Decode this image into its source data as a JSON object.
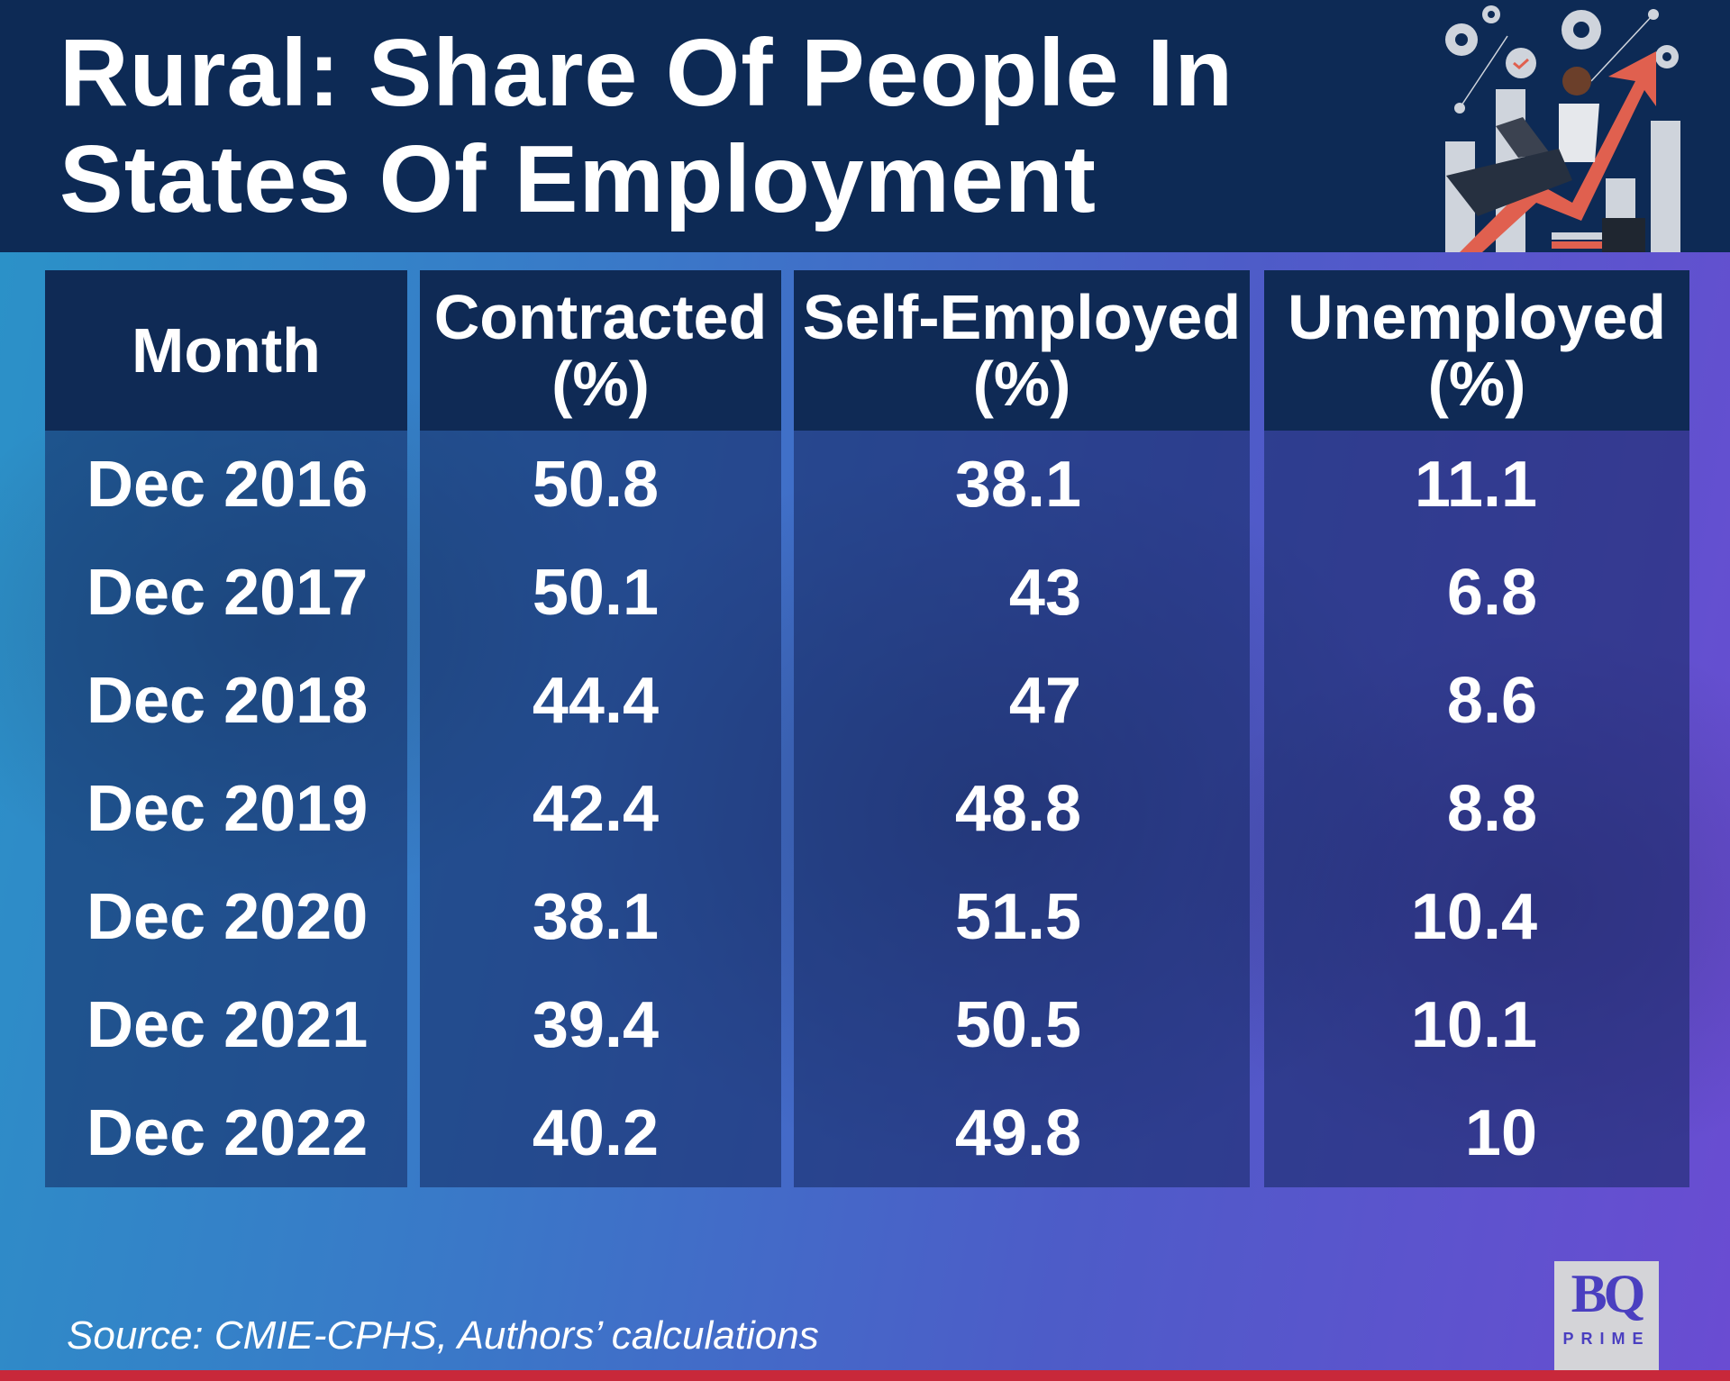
{
  "title": {
    "line1": "Rural: Share Of People In",
    "line2": "States Of Employment"
  },
  "table": {
    "headers": [
      {
        "l1": "Month",
        "l2": ""
      },
      {
        "l1": "Contracted",
        "l2": "(%)"
      },
      {
        "l1": "Self-Employed",
        "l2": "(%)"
      },
      {
        "l1": "Unemployed",
        "l2": "(%)"
      }
    ],
    "rows": [
      [
        "Dec 2016",
        "50.8",
        "38.1",
        "11.1"
      ],
      [
        "Dec 2017",
        "50.1",
        "43",
        "6.8"
      ],
      [
        "Dec 2018",
        "44.4",
        "47",
        "8.6"
      ],
      [
        "Dec 2019",
        "42.4",
        "48.8",
        "8.8"
      ],
      [
        "Dec 2020",
        "38.1",
        "51.5",
        "10.4"
      ],
      [
        "Dec 2021",
        "39.4",
        "50.5",
        "10.1"
      ],
      [
        "Dec 2022",
        "40.2",
        "49.8",
        "10"
      ]
    ]
  },
  "source": "Source: CMIE-CPHS, Authors’ calculations",
  "logo": {
    "mark": "BQ",
    "sub": "PRIME"
  }
}
